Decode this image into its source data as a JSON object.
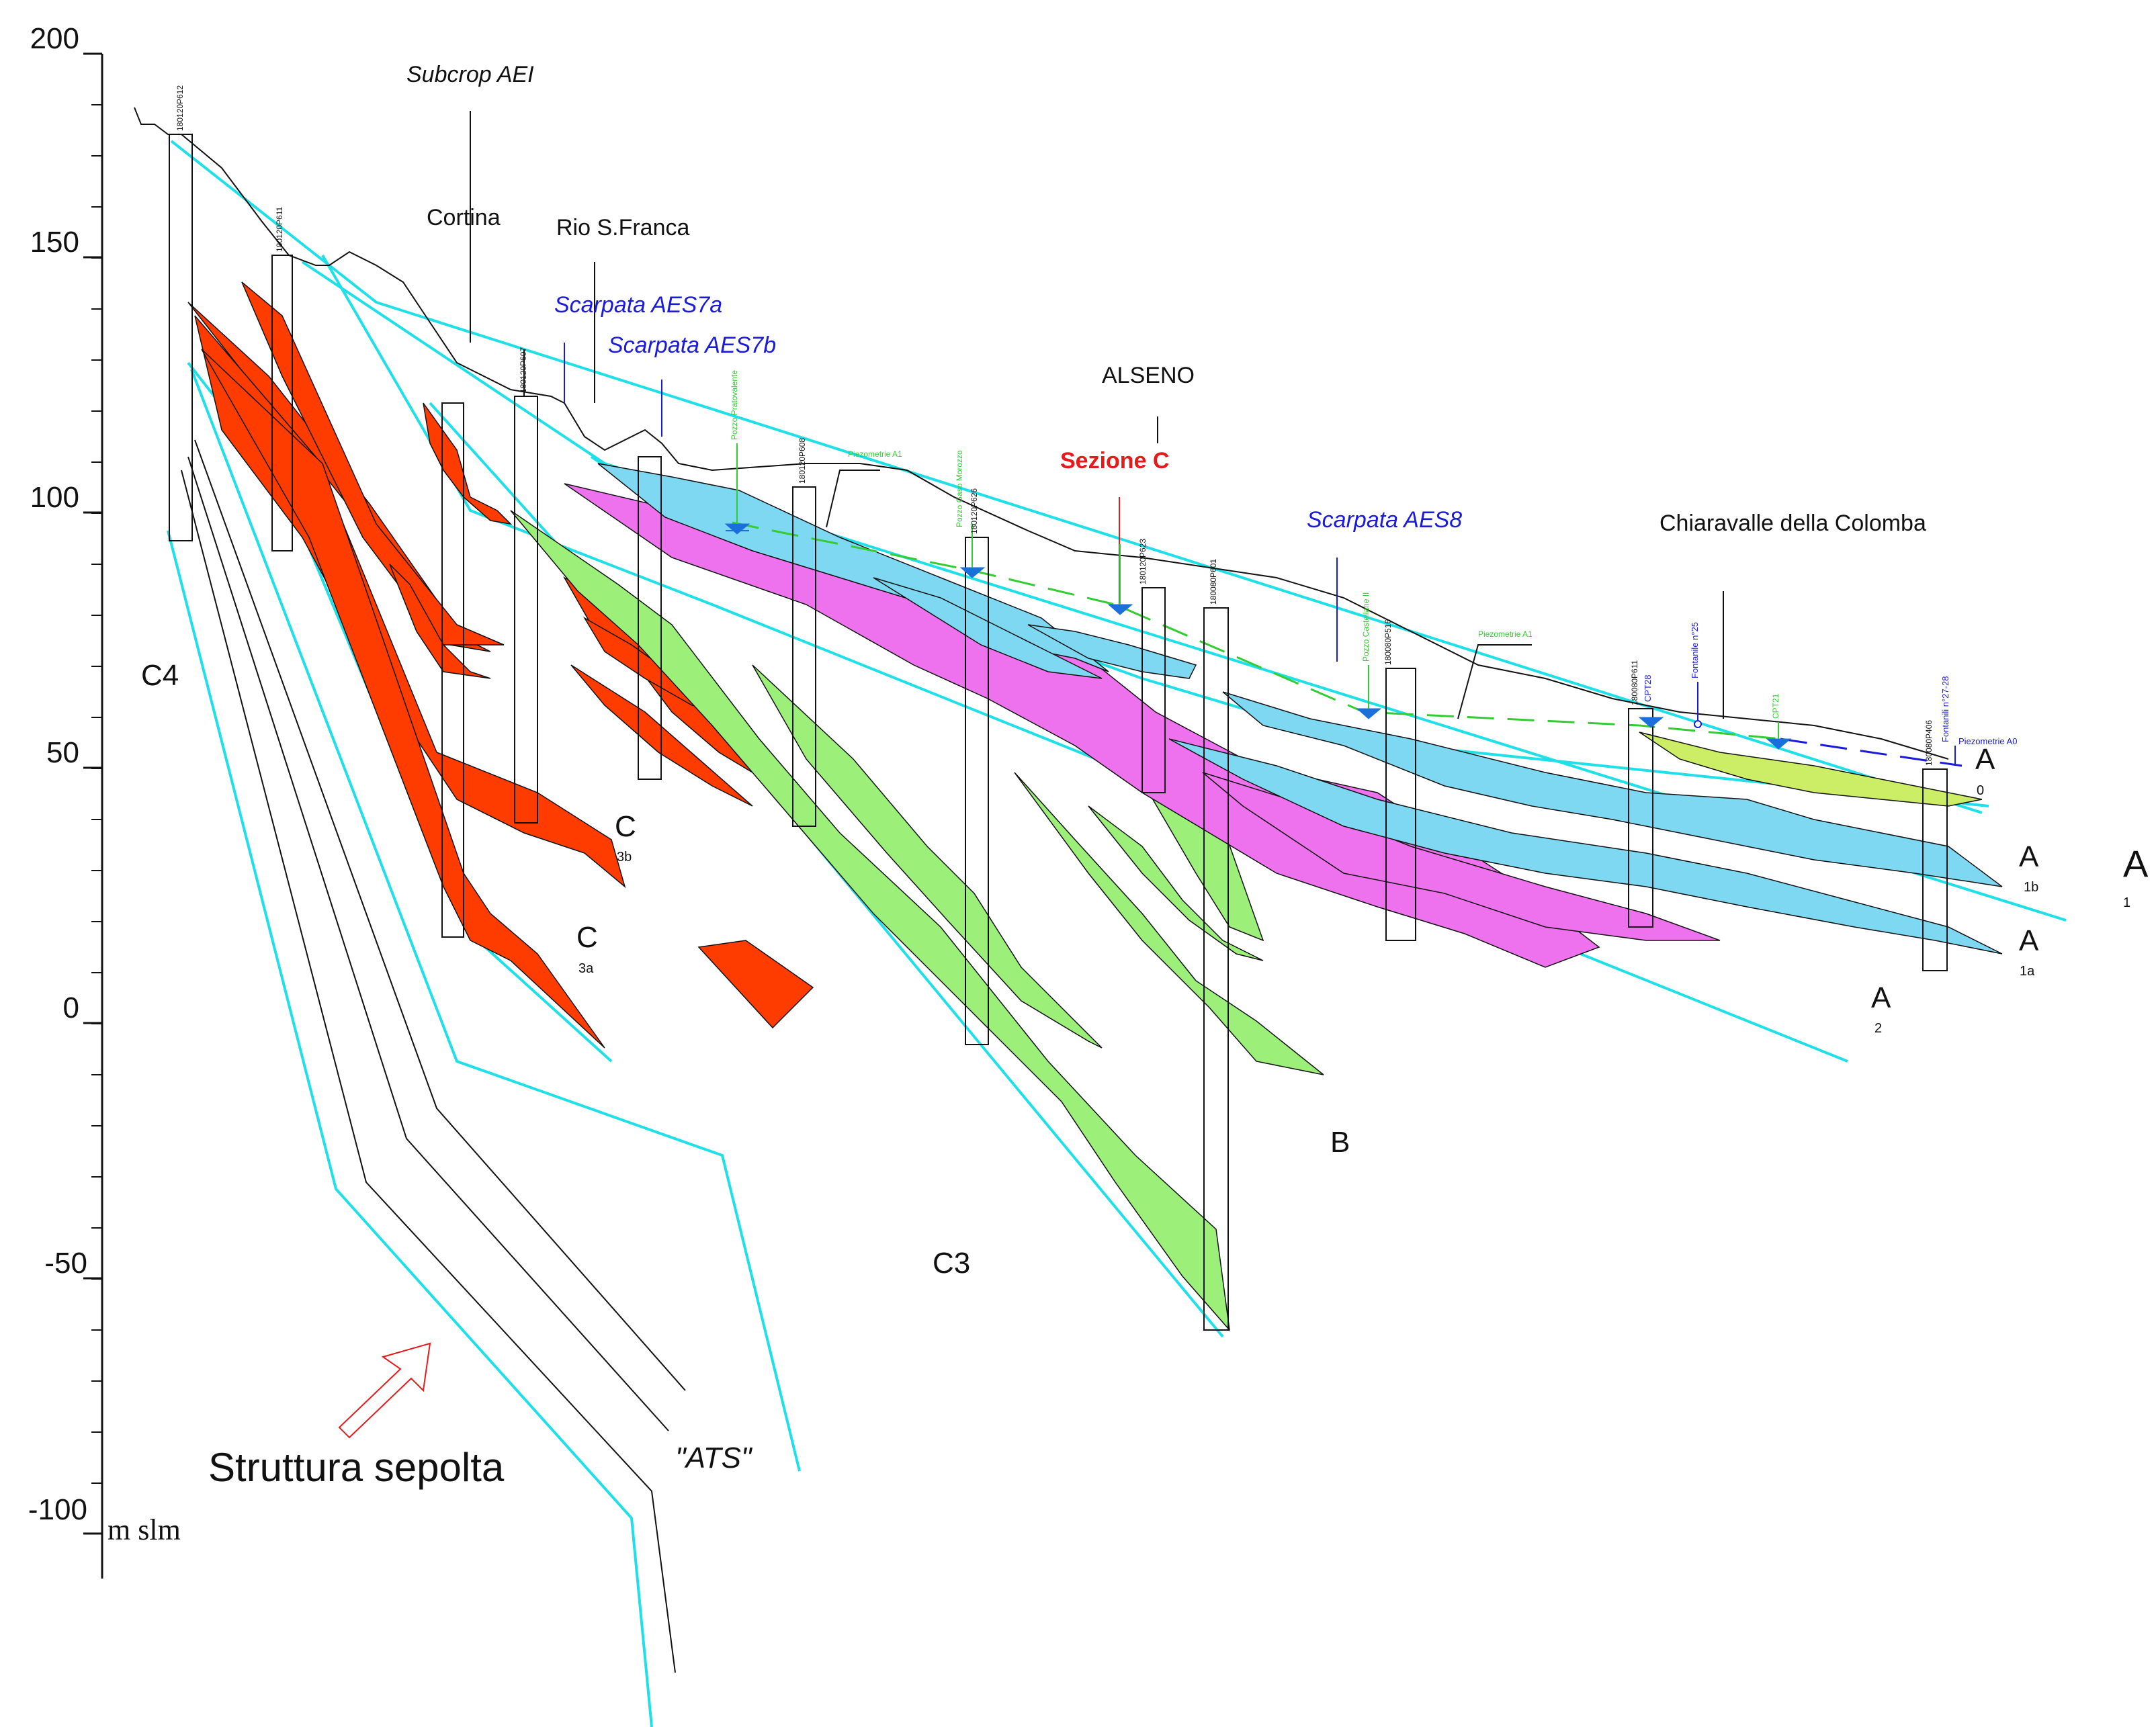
{
  "axis": {
    "ticks": [
      "200",
      "150",
      "100",
      "50",
      "0",
      "-50",
      "-100"
    ],
    "unit": "m slm"
  },
  "places": {
    "subcrop": "Subcrop AEI",
    "cortina": "Cortina",
    "rio_sfranca": "Rio S.Franca",
    "alseno": "ALSENO",
    "chiaravalle": "Chiaravalle  della Colomba"
  },
  "scarpate": {
    "aes7a": "Scarpata AES7a",
    "aes7b": "Scarpata AES7b",
    "aes8": "Scarpata AES8"
  },
  "section_title": "Sezione C",
  "units": {
    "c4": "C4",
    "c3": "C3",
    "c3b": {
      "main": "C",
      "sub": "3b"
    },
    "c3a": {
      "main": "C",
      "sub": "3a"
    },
    "b": "B",
    "a0": {
      "main": "A",
      "sub": "0"
    },
    "a1b": {
      "main": "A",
      "sub": "1b"
    },
    "a1": {
      "main": "A",
      "sub": "1"
    },
    "a1a": {
      "main": "A",
      "sub": "1a"
    },
    "a2": {
      "main": "A",
      "sub": "2"
    }
  },
  "structure": {
    "label": "Struttura sepolta",
    "ats": "\"ATS\""
  },
  "wells": [
    "180120P612",
    "180120P611",
    "180120P607",
    "180120P608",
    "180120P626",
    "180120P623",
    "180080P601",
    "180080P516",
    "180080P611",
    "180080P406"
  ],
  "piezometers": {
    "p1": "Pozzo Pratovalente",
    "p2": "Piezometrie A1",
    "p3": "Pozzo Gaso Morozzo",
    "p4": "Pozzo Castellane II",
    "p5": "Piezometrie A1",
    "p6": "CPT28",
    "p7": "Fontanile n°25",
    "p8": "CPT21",
    "p9": "Fontanili n°27-28",
    "p10": "Piezometrie A0"
  },
  "colors": {
    "cyan_line": "#1fe0e8",
    "cyan_fill": "#7fd8f2",
    "magenta": "#ee72ee",
    "green": "#9cf07a",
    "orange_red": "#ff3c00",
    "yellow_green": "#ccee66",
    "piezo_green": "#33cc33",
    "blue": "#1a1adb",
    "red": "#e51a1a"
  }
}
